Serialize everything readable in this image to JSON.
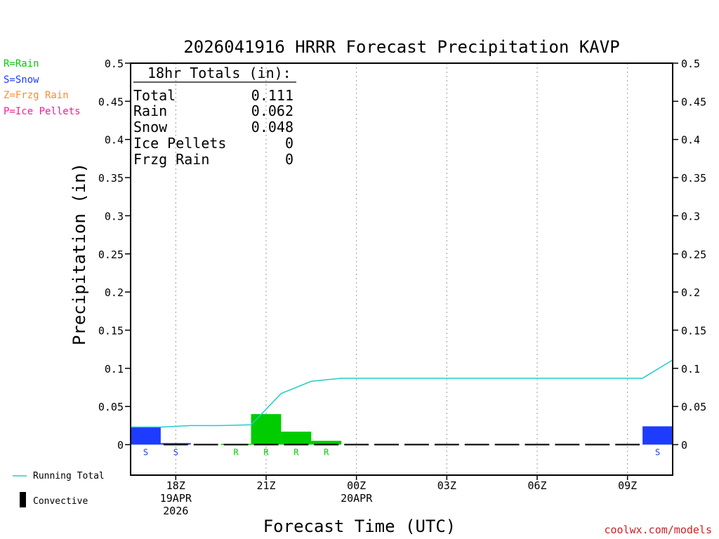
{
  "colors": {
    "rain": "#00cc00",
    "snow": "#1e3cff",
    "frzg_rain": "#ff8c33",
    "ice_pellets": "#ff1a8c",
    "running_total": "#22cccc",
    "convective": "#000000",
    "credit": "#cc2222"
  },
  "ptype_legend": [
    {
      "label": "R=Rain",
      "color": "#00cc00"
    },
    {
      "label": "S=Snow",
      "color": "#1e3cff"
    },
    {
      "label": "Z=Frzg Rain",
      "color": "#ff8c33"
    },
    {
      "label": "P=Ice Pellets",
      "color": "#ff1a8c"
    }
  ],
  "totals": {
    "header": "18hr Totals (in):",
    "rows": [
      {
        "label": "Total",
        "value": "0.111"
      },
      {
        "label": "Rain",
        "value": "0.062"
      },
      {
        "label": "Snow",
        "value": "0.048"
      },
      {
        "label": "Ice Pellets",
        "value": "0"
      },
      {
        "label": "Frzg Rain",
        "value": "0"
      }
    ]
  },
  "bottom_legend": {
    "running_total": "Running Total",
    "convective": "Convective"
  },
  "credit": "coolwx.com/models",
  "chart_data": {
    "type": "bar",
    "title": "2026041916 HRRR Forecast Precipitation KAVP",
    "xlabel": "Forecast Time (UTC)",
    "ylabel": "Precipitation (in)",
    "ylim": [
      -0.04,
      0.5
    ],
    "yticks": [
      0,
      0.05,
      0.1,
      0.15,
      0.2,
      0.25,
      0.3,
      0.35,
      0.4,
      0.45,
      0.5
    ],
    "ytick_labels": [
      "0",
      "0.05",
      "0.1",
      "0.15",
      "0.2",
      "0.25",
      "0.3",
      "0.35",
      "0.4",
      "0.45",
      "0.5"
    ],
    "xlim": [
      16.5,
      34.5
    ],
    "x_ticks": [
      {
        "hour": 18,
        "lines": [
          "18Z",
          "19APR",
          "2026"
        ]
      },
      {
        "hour": 21,
        "lines": [
          "21Z"
        ]
      },
      {
        "hour": 24,
        "lines": [
          "00Z",
          "20APR"
        ]
      },
      {
        "hour": 27,
        "lines": [
          "03Z"
        ]
      },
      {
        "hour": 30,
        "lines": [
          "06Z"
        ]
      },
      {
        "hour": 33,
        "lines": [
          "09Z"
        ]
      }
    ],
    "hourly_bars": [
      {
        "hour": 17,
        "value": 0.023,
        "ptype": "S"
      },
      {
        "hour": 18,
        "value": 0.002,
        "ptype": "S"
      },
      {
        "hour": 19,
        "value": 0.0,
        "ptype": ""
      },
      {
        "hour": 20,
        "value": 0.001,
        "ptype": "R"
      },
      {
        "hour": 21,
        "value": 0.04,
        "ptype": "R"
      },
      {
        "hour": 22,
        "value": 0.017,
        "ptype": "R"
      },
      {
        "hour": 23,
        "value": 0.005,
        "ptype": "R"
      },
      {
        "hour": 24,
        "value": 0.0,
        "ptype": ""
      },
      {
        "hour": 25,
        "value": 0.0,
        "ptype": ""
      },
      {
        "hour": 26,
        "value": 0.0,
        "ptype": ""
      },
      {
        "hour": 27,
        "value": 0.0,
        "ptype": ""
      },
      {
        "hour": 28,
        "value": 0.0,
        "ptype": ""
      },
      {
        "hour": 29,
        "value": 0.0,
        "ptype": ""
      },
      {
        "hour": 30,
        "value": 0.0,
        "ptype": ""
      },
      {
        "hour": 31,
        "value": 0.0,
        "ptype": ""
      },
      {
        "hour": 32,
        "value": 0.0,
        "ptype": ""
      },
      {
        "hour": 33,
        "value": 0.0,
        "ptype": ""
      },
      {
        "hour": 34,
        "value": 0.024,
        "ptype": "S"
      }
    ],
    "convective_bars": [
      {
        "hour": 18,
        "value": 0.001
      },
      {
        "hour": 19,
        "value": 0.001
      },
      {
        "hour": 20,
        "value": 0.001
      },
      {
        "hour": 21,
        "value": 0.001
      },
      {
        "hour": 22,
        "value": 0.001
      },
      {
        "hour": 23,
        "value": 0.001
      },
      {
        "hour": 24,
        "value": 0.001
      },
      {
        "hour": 25,
        "value": 0.001
      },
      {
        "hour": 26,
        "value": 0.001
      },
      {
        "hour": 27,
        "value": 0.001
      },
      {
        "hour": 28,
        "value": 0.001
      },
      {
        "hour": 29,
        "value": 0.001
      },
      {
        "hour": 30,
        "value": 0.001
      },
      {
        "hour": 31,
        "value": 0.001
      },
      {
        "hour": 32,
        "value": 0.001
      },
      {
        "hour": 33,
        "value": 0.001
      }
    ],
    "running_total": [
      {
        "hour": 17,
        "value": 0.023
      },
      {
        "hour": 18,
        "value": 0.025
      },
      {
        "hour": 19,
        "value": 0.025
      },
      {
        "hour": 20,
        "value": 0.026
      },
      {
        "hour": 21,
        "value": 0.067
      },
      {
        "hour": 22,
        "value": 0.083
      },
      {
        "hour": 23,
        "value": 0.087
      },
      {
        "hour": 24,
        "value": 0.087
      },
      {
        "hour": 25,
        "value": 0.087
      },
      {
        "hour": 26,
        "value": 0.087
      },
      {
        "hour": 27,
        "value": 0.087
      },
      {
        "hour": 28,
        "value": 0.087
      },
      {
        "hour": 29,
        "value": 0.087
      },
      {
        "hour": 30,
        "value": 0.087
      },
      {
        "hour": 31,
        "value": 0.087
      },
      {
        "hour": 32,
        "value": 0.087
      },
      {
        "hour": 33,
        "value": 0.087
      },
      {
        "hour": 34,
        "value": 0.111
      }
    ]
  }
}
